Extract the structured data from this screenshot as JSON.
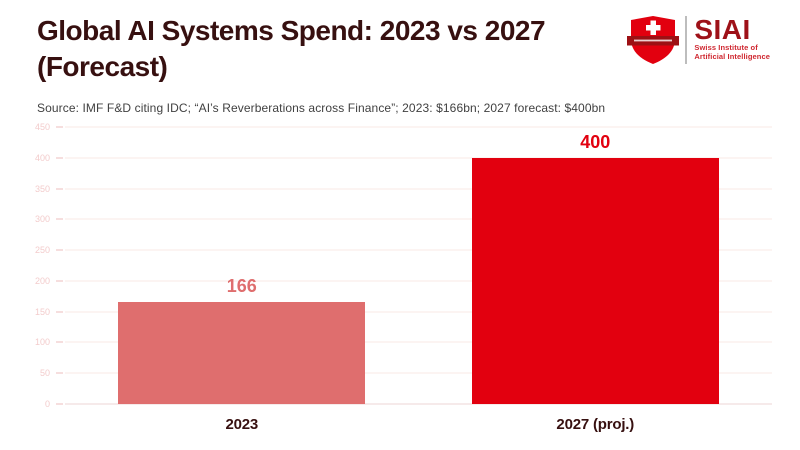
{
  "header": {
    "title": "Global AI Systems Spend: 2023 vs 2027 (Forecast)"
  },
  "logo": {
    "acronym": "SIAI",
    "subtitle_line1": "Swiss Institute of",
    "subtitle_line2": "Artificial Intelligence",
    "shield_color": "#e2000f",
    "ribbon_color": "#9d1014",
    "acronym_color": "#9e1118",
    "subtitle_color": "#cf2730"
  },
  "source_note": "Source: IMF F&D citing IDC; “AI’s Reverberations across Finance”; 2023: $166bn; 2027 forecast: $400bn",
  "chart_data": {
    "type": "bar",
    "title": "Global AI Systems Spend: 2023 vs 2027 (Forecast)",
    "categories": [
      "2023",
      "2027 (proj.)"
    ],
    "values": [
      166,
      400
    ],
    "value_labels": [
      "166",
      "400"
    ],
    "bar_colors": [
      "#df6e6e",
      "#e2000f"
    ],
    "value_label_colors": [
      "#df6e6e",
      "#e2000f"
    ],
    "units": "$bn",
    "xlabel": "",
    "ylabel": "",
    "ylim": [
      0,
      450
    ],
    "yticks": [
      0,
      50,
      100,
      150,
      200,
      250,
      300,
      350,
      400,
      450
    ],
    "grid": true,
    "legend": false
  },
  "colors": {
    "title_text": "#371010",
    "source_text": "#414141",
    "gridline": "#fae8e6",
    "axis_baseline": "#ecd6d6",
    "y_tick_label": "#f3cccc",
    "x_category_label": "#371010",
    "background": "#ffffff"
  }
}
